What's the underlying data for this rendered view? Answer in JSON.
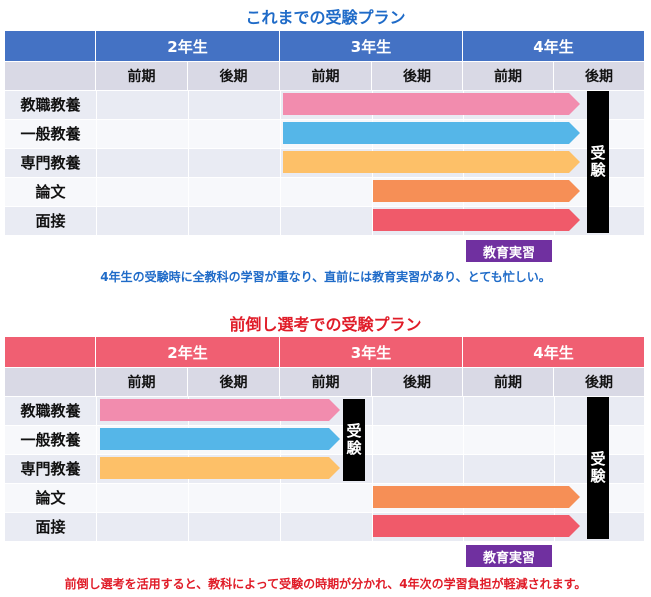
{
  "colors": {
    "blue_header": "#4472c4",
    "red_header": "#f05f72",
    "subheader_bg": "#d9d9e5",
    "row_odd": "#e9ebf3",
    "row_even": "#f7f8fb",
    "pink": "#f28cae",
    "sky": "#55b6e8",
    "yellow": "#fdc068",
    "orange": "#f68f56",
    "red": "#f05a6a",
    "exam_bg": "#000000",
    "badge_bg": "#7030a0",
    "note_blue": "#1f6bc8",
    "note_red": "#e01c28"
  },
  "plan1": {
    "title": "これまでの受験プラン",
    "years": [
      "2年生",
      "3年生",
      "4年生"
    ],
    "terms": [
      "前期",
      "後期",
      "前期",
      "後期",
      "前期",
      "後期"
    ],
    "rows": [
      "教職教養",
      "一般教養",
      "専門教養",
      "論文",
      "面接"
    ],
    "exam_label": "受験",
    "badge": "教育実習",
    "note": "4年生の受験時に全教科の学習が重なり、直前には教育実習があり、とても忙しい。"
  },
  "plan2": {
    "title": "前倒し選考での受験プラン",
    "years": [
      "2年生",
      "3年生",
      "4年生"
    ],
    "terms": [
      "前期",
      "後期",
      "前期",
      "後期",
      "前期",
      "後期"
    ],
    "rows": [
      "教職教養",
      "一般教養",
      "専門教養",
      "論文",
      "面接"
    ],
    "exam_label": "受験",
    "exam_label_early": "受験",
    "badge": "教育実習",
    "note": "前倒し選考を活用すると、教科によって受験の時期が分かれ、4年次の学習負担が軽減されます。"
  }
}
